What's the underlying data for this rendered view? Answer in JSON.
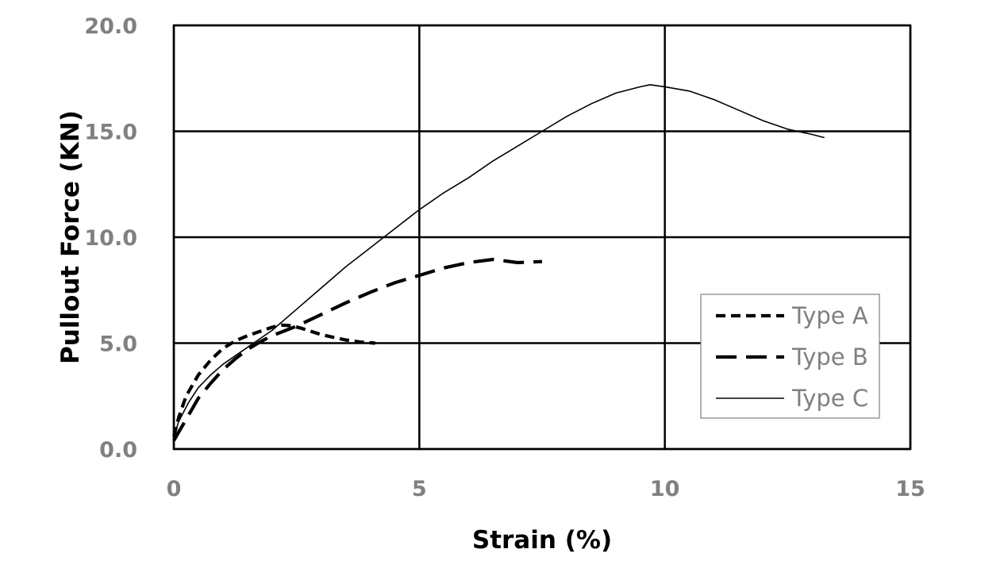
{
  "chart_data": {
    "type": "line",
    "title": "",
    "xlabel": "Strain (%)",
    "ylabel": "Pullout Force (KN)",
    "xlim": [
      0,
      15
    ],
    "ylim": [
      0,
      20
    ],
    "x_ticks": [
      0,
      5,
      10,
      15
    ],
    "x_tick_labels": [
      "0",
      "5",
      "10",
      "15"
    ],
    "y_ticks": [
      0,
      5,
      10,
      15,
      20
    ],
    "y_tick_labels": [
      "0.0",
      "5.0",
      "10.0",
      "15.0",
      "20.0"
    ],
    "grid": true,
    "legend_position": "bottom-right",
    "series": [
      {
        "name": "Type A",
        "style": "short-dash",
        "color": "#000000",
        "x": [
          0,
          0.1,
          0.25,
          0.5,
          0.75,
          1.0,
          1.25,
          1.5,
          1.75,
          2.0,
          2.2,
          2.4,
          2.6,
          2.8,
          3.0,
          3.2,
          3.5,
          3.8,
          4.1
        ],
        "y": [
          0.6,
          1.5,
          2.5,
          3.5,
          4.2,
          4.75,
          5.1,
          5.35,
          5.55,
          5.75,
          5.85,
          5.82,
          5.7,
          5.55,
          5.4,
          5.3,
          5.15,
          5.05,
          5.0
        ]
      },
      {
        "name": "Type B",
        "style": "long-dash",
        "color": "#000000",
        "x": [
          0,
          0.1,
          0.3,
          0.5,
          0.75,
          1.0,
          1.25,
          1.5,
          1.75,
          2.0,
          2.5,
          3.0,
          3.5,
          4.0,
          4.5,
          5.0,
          5.5,
          6.0,
          6.5,
          7.0,
          7.5
        ],
        "y": [
          0.4,
          0.8,
          1.6,
          2.4,
          3.1,
          3.75,
          4.25,
          4.7,
          5.05,
          5.35,
          5.8,
          6.35,
          6.9,
          7.4,
          7.85,
          8.2,
          8.55,
          8.8,
          8.95,
          8.8,
          8.85
        ]
      },
      {
        "name": "Type C",
        "style": "solid",
        "color": "#000000",
        "x": [
          0,
          0.1,
          0.3,
          0.5,
          0.75,
          1.0,
          1.5,
          2.0,
          2.5,
          3.0,
          3.5,
          4.0,
          4.5,
          5.0,
          5.5,
          6.0,
          6.5,
          7.0,
          7.5,
          8.0,
          8.5,
          9.0,
          9.5,
          9.7,
          10.0,
          10.5,
          11.0,
          11.5,
          12.0,
          12.5,
          13.0,
          13.25
        ],
        "y": [
          0.6,
          1.3,
          2.2,
          2.9,
          3.5,
          4.0,
          4.8,
          5.6,
          6.6,
          7.6,
          8.6,
          9.5,
          10.4,
          11.3,
          12.1,
          12.8,
          13.6,
          14.3,
          15.0,
          15.7,
          16.3,
          16.8,
          17.1,
          17.2,
          17.1,
          16.9,
          16.5,
          16.0,
          15.5,
          15.1,
          14.85,
          14.7
        ]
      }
    ]
  }
}
